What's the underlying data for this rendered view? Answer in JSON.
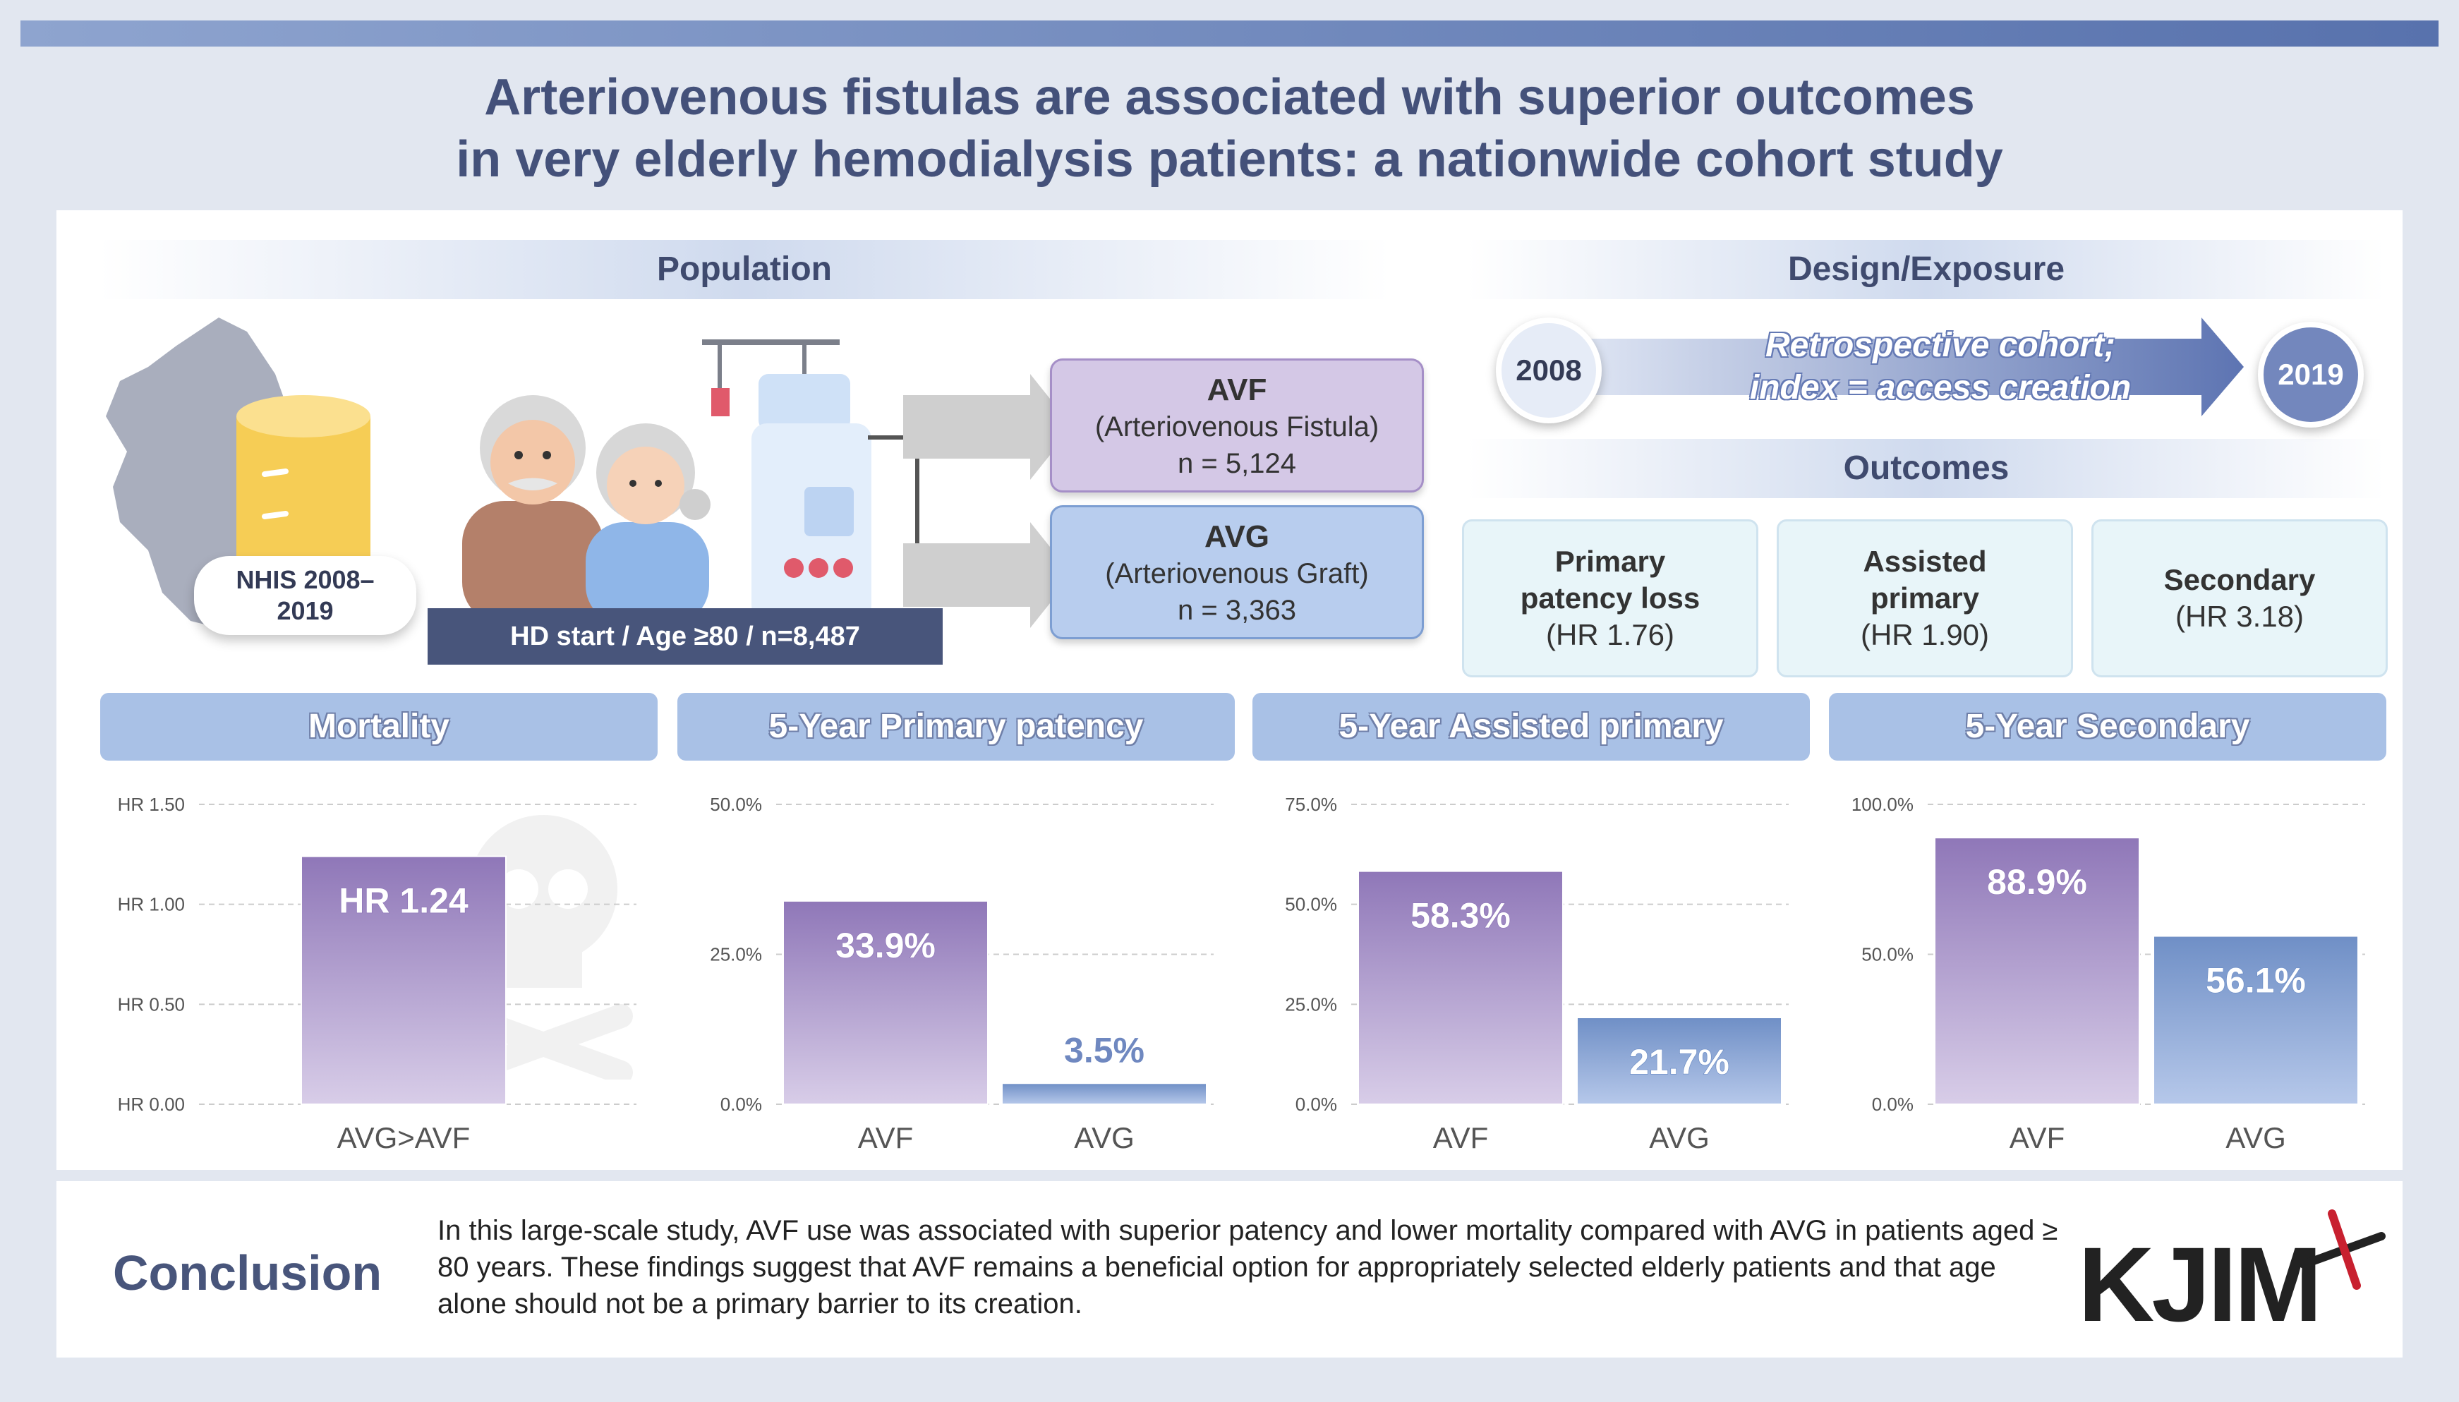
{
  "title": {
    "line1": "Arteriovenous fistulas are associated with superior outcomes",
    "line2": "in very elderly hemodialysis patients: a nationwide cohort study"
  },
  "population": {
    "header": "Population",
    "nhis_label_1": "NHIS 2008–",
    "nhis_label_2": "2019",
    "hd_bar": "HD start / Age ≥80 / n=8,487",
    "avf": {
      "title": "AVF",
      "sub": "(Arteriovenous Fistula)",
      "n": "n = 5,124"
    },
    "avg": {
      "title": "AVG",
      "sub": "(Arteriovenous Graft)",
      "n": "n = 3,363"
    }
  },
  "design": {
    "header": "Design/Exposure",
    "start_year": "2008",
    "end_year": "2019",
    "arrow_line1": "Retrospective cohort;",
    "arrow_line2": "index = access creation"
  },
  "outcomes": {
    "header": "Outcomes",
    "items": [
      {
        "l1": "Primary",
        "l2": "patency loss",
        "hr": "(HR 1.76)"
      },
      {
        "l1": "Assisted",
        "l2": "primary",
        "hr": "(HR 1.90)"
      },
      {
        "l1": "Secondary",
        "l2": "",
        "hr": "(HR 3.18)"
      }
    ]
  },
  "colors": {
    "purple": "#8f77b8",
    "purple_light": "#d8cde8",
    "blue": "#6f8fc6",
    "blue_light": "#b6c8ea",
    "axis_text": "#555555",
    "grid": "#cccccc"
  },
  "chart_data": [
    {
      "type": "bar",
      "title": "Mortality",
      "categories": [
        "AVG>AVF"
      ],
      "values": [
        1.24
      ],
      "value_labels": [
        "HR 1.24"
      ],
      "ylim": [
        0,
        1.5
      ],
      "yticks": [
        0,
        0.5,
        1.0,
        1.5
      ],
      "ytick_labels": [
        "HR 0.00",
        "HR 0.50",
        "HR 1.00",
        "HR 1.50"
      ],
      "bar_colors": [
        "purple"
      ],
      "grid": true
    },
    {
      "type": "bar",
      "title": "5-Year Primary patency",
      "categories": [
        "AVF",
        "AVG"
      ],
      "values": [
        33.9,
        3.5
      ],
      "value_labels": [
        "33.9%",
        "3.5%"
      ],
      "ylim": [
        0,
        50
      ],
      "yticks": [
        0,
        25,
        50
      ],
      "ytick_labels": [
        "0.0%",
        "25.0%",
        "50.0%"
      ],
      "bar_colors": [
        "purple",
        "blue"
      ],
      "grid": true
    },
    {
      "type": "bar",
      "title": "5-Year Assisted primary",
      "categories": [
        "AVF",
        "AVG"
      ],
      "values": [
        58.3,
        21.7
      ],
      "value_labels": [
        "58.3%",
        "21.7%"
      ],
      "ylim": [
        0,
        75
      ],
      "yticks": [
        0,
        25,
        50,
        75
      ],
      "ytick_labels": [
        "0.0%",
        "25.0%",
        "50.0%",
        "75.0%"
      ],
      "bar_colors": [
        "purple",
        "blue"
      ],
      "grid": true
    },
    {
      "type": "bar",
      "title": "5-Year Secondary",
      "categories": [
        "AVF",
        "AVG"
      ],
      "values": [
        88.9,
        56.1
      ],
      "value_labels": [
        "88.9%",
        "56.1%"
      ],
      "ylim": [
        0,
        100
      ],
      "yticks": [
        0,
        50,
        100
      ],
      "ytick_labels": [
        "0.0%",
        "50.0%",
        "100.0%"
      ],
      "bar_colors": [
        "purple",
        "blue"
      ],
      "grid": true
    }
  ],
  "conclusion": {
    "label": "Conclusion",
    "text": "In this large-scale study, AVF use was associated with superior patency and lower mortality compared with AVG in patients aged ≥ 80 years. These findings suggest that AVF remains a beneficial option for appropriately selected elderly patients and that age alone should not be a primary barrier to its creation."
  },
  "logo": {
    "text": "KJIM"
  }
}
